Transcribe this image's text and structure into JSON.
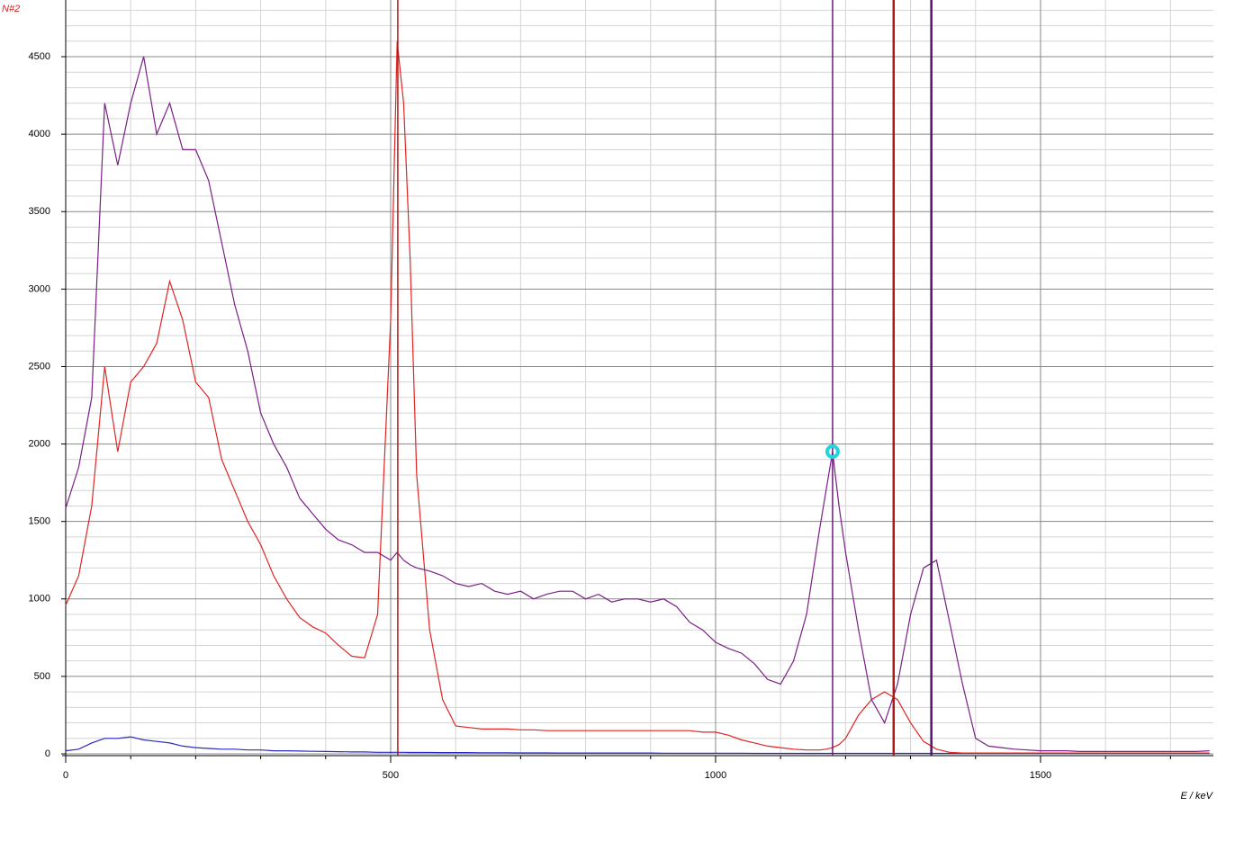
{
  "chart_data": {
    "type": "line",
    "ylabel": "N#2",
    "xlabel": "E / keV",
    "x": [
      0,
      20,
      40,
      60,
      80,
      100,
      120,
      140,
      160,
      180,
      200,
      220,
      240,
      260,
      280,
      300,
      320,
      340,
      360,
      380,
      400,
      420,
      440,
      460,
      480,
      500,
      510,
      520,
      530,
      540,
      560,
      580,
      600,
      620,
      640,
      660,
      680,
      700,
      720,
      740,
      760,
      780,
      800,
      820,
      840,
      860,
      880,
      900,
      920,
      940,
      960,
      980,
      1000,
      1020,
      1040,
      1060,
      1080,
      1100,
      1120,
      1140,
      1160,
      1170,
      1180,
      1190,
      1200,
      1220,
      1240,
      1260,
      1280,
      1300,
      1320,
      1340,
      1360,
      1380,
      1400,
      1420,
      1440,
      1460,
      1480,
      1500,
      1520,
      1540,
      1560,
      1580,
      1600,
      1620,
      1640,
      1660,
      1680,
      1700,
      1720,
      1740,
      1760
    ],
    "series": [
      {
        "name": "purple",
        "color": "#7a1f86",
        "values": [
          1585,
          1850,
          2300,
          4200,
          3800,
          4200,
          4500,
          4000,
          4200,
          3900,
          3900,
          3700,
          3300,
          2900,
          2600,
          2200,
          2000,
          1850,
          1650,
          1550,
          1450,
          1380,
          1350,
          1300,
          1300,
          1250,
          1300,
          1250,
          1220,
          1200,
          1180,
          1150,
          1100,
          1080,
          1100,
          1050,
          1030,
          1050,
          1000,
          1030,
          1050,
          1050,
          1000,
          1030,
          980,
          1000,
          1000,
          980,
          1000,
          950,
          850,
          800,
          720,
          680,
          650,
          580,
          480,
          450,
          600,
          900,
          1450,
          1700,
          1950,
          1600,
          1300,
          800,
          350,
          200,
          450,
          900,
          1200,
          1250,
          850,
          450,
          100,
          50,
          40,
          30,
          25,
          20,
          20,
          20,
          15,
          15,
          15,
          15,
          15,
          15,
          15,
          15,
          15,
          15,
          20
        ]
      },
      {
        "name": "red",
        "color": "#e02525",
        "values": [
          960,
          1150,
          1600,
          2500,
          1950,
          2400,
          2500,
          2650,
          3050,
          2800,
          2400,
          2300,
          1900,
          1700,
          1500,
          1350,
          1150,
          1000,
          880,
          820,
          780,
          700,
          630,
          620,
          900,
          2800,
          4600,
          4200,
          3200,
          1800,
          800,
          350,
          180,
          170,
          160,
          160,
          160,
          155,
          155,
          150,
          150,
          150,
          150,
          150,
          150,
          150,
          150,
          150,
          150,
          150,
          150,
          140,
          140,
          120,
          90,
          70,
          50,
          40,
          30,
          25,
          25,
          30,
          40,
          60,
          100,
          250,
          350,
          400,
          350,
          200,
          80,
          30,
          10,
          5,
          5,
          5,
          5,
          5,
          5,
          5,
          5,
          5,
          5,
          5,
          5,
          5,
          5,
          5,
          5,
          5,
          5,
          5,
          5
        ]
      },
      {
        "name": "blue",
        "color": "#2a2ac0",
        "values": [
          20,
          30,
          70,
          100,
          100,
          110,
          90,
          80,
          70,
          50,
          40,
          35,
          30,
          30,
          25,
          25,
          20,
          20,
          18,
          16,
          15,
          14,
          12,
          12,
          10,
          10,
          10,
          10,
          9,
          9,
          9,
          8,
          8,
          8,
          7,
          7,
          7,
          6,
          6,
          6,
          5,
          5,
          5,
          5,
          5,
          5,
          5,
          5,
          4,
          4,
          4,
          4,
          4,
          4,
          4,
          3,
          3,
          3,
          3,
          3,
          3,
          3,
          3,
          3,
          3,
          3,
          3,
          3,
          3,
          3,
          3,
          3,
          3,
          3,
          3,
          3,
          3,
          3,
          3,
          3,
          3,
          3,
          3,
          3,
          3,
          3,
          3,
          3,
          3,
          3,
          3,
          3,
          3
        ]
      }
    ],
    "markers": [
      {
        "value": 511,
        "color": "#b01818",
        "width": 1.5
      },
      {
        "value": 1274,
        "color": "#b01818",
        "width": 2.5
      },
      {
        "value": 1180,
        "color": "#6a1a7a",
        "width": 1.5
      },
      {
        "value": 1332,
        "color": "#5a1070",
        "width": 2.5
      }
    ],
    "cursor": {
      "x": 1180,
      "y": 1951,
      "color": "#22d4e0"
    },
    "xlim": [
      0,
      1766
    ],
    "ylim": [
      0,
      4866
    ],
    "xticks": [
      0,
      500,
      1000,
      1500
    ],
    "yticks": [
      0,
      500,
      1000,
      1500,
      2000,
      2500,
      3000,
      3500,
      4000,
      4500
    ],
    "xminorticks": [
      100,
      200,
      300,
      400,
      600,
      700,
      800,
      900,
      1100,
      1200,
      1300,
      1400,
      1600,
      1700
    ],
    "yminorticks": [
      100,
      200,
      300,
      400,
      600,
      700,
      800,
      900,
      1100,
      1200,
      1300,
      1400,
      1600,
      1700,
      1800,
      1900,
      2100,
      2200,
      2300,
      2400,
      2600,
      2700,
      2800,
      2900,
      3100,
      3200,
      3300,
      3400,
      3600,
      3700,
      3800,
      3900,
      4100,
      4200,
      4300,
      4400,
      4600,
      4700,
      4800
    ],
    "grid": true
  }
}
